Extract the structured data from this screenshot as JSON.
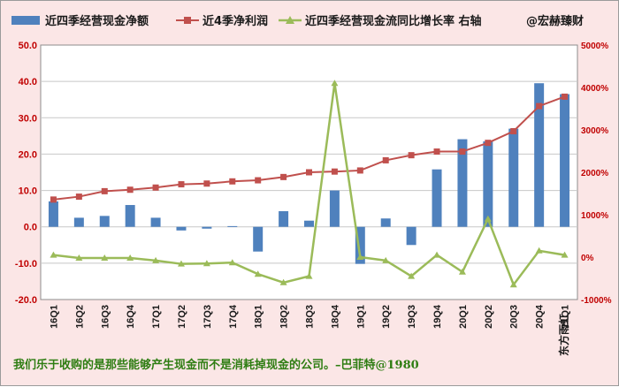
{
  "colors": {
    "background": "#fbe6e6",
    "plot_background": "#ffffff",
    "bars": "#4f81bd",
    "net_profit_line": "#c0504d",
    "growth_line": "#9bbb59",
    "tick_labels": "#c00000",
    "quote_text": "#2e7d12"
  },
  "legend": {
    "bar_label": "近四季经营现金净额",
    "profit_label": "近4季净利润",
    "growth_label": "近四季经营现金流同比增长率 右轴",
    "source_tag": "@宏赫臻财"
  },
  "watermark": "东方雨虹",
  "quote": "我们乐于收购的是那些能够产生现金而不是消耗掉现金的公司。–巴菲特@1980",
  "chart_data": {
    "type": "bar",
    "categories": [
      "16Q1",
      "16Q2",
      "16Q3",
      "16Q4",
      "17Q1",
      "17Q2",
      "17Q3",
      "17Q4",
      "18Q1",
      "18Q2",
      "18Q3",
      "18Q4",
      "19Q1",
      "19Q2",
      "19Q3",
      "19Q4",
      "20Q1",
      "20Q2",
      "20Q3",
      "20Q4",
      "21Q1"
    ],
    "series": [
      {
        "name": "近四季经营现金净额",
        "type": "bar",
        "axis": "left",
        "values": [
          7.0,
          2.5,
          3.0,
          6.0,
          2.5,
          -1.0,
          -0.5,
          0.2,
          -6.8,
          4.3,
          1.7,
          10.0,
          -10.2,
          2.3,
          -5.0,
          15.8,
          24.1,
          23.5,
          27.0,
          39.5,
          36.5
        ]
      },
      {
        "name": "近4季净利润",
        "type": "line",
        "axis": "left",
        "values": [
          7.5,
          8.3,
          9.8,
          10.2,
          10.8,
          11.7,
          11.9,
          12.5,
          12.8,
          13.7,
          15.0,
          15.2,
          15.5,
          18.3,
          19.7,
          20.7,
          20.7,
          23.1,
          26.3,
          33.2,
          35.8
        ]
      },
      {
        "name": "近四季经营现金流同比增长率",
        "type": "line",
        "axis": "right",
        "values": [
          50,
          -20,
          -20,
          -20,
          -80,
          -160,
          -150,
          -130,
          -400,
          -600,
          -450,
          4100,
          0,
          -80,
          -450,
          50,
          -350,
          900,
          -650,
          150,
          50
        ]
      }
    ],
    "y_left": {
      "lim": [
        -20,
        50
      ],
      "ticks": [
        "50.0",
        "40.0",
        "30.0",
        "20.0",
        "10.0",
        "0.0",
        "-10.0",
        "-20.0"
      ]
    },
    "y_right": {
      "lim": [
        -1000,
        5000
      ],
      "ticks": [
        "5000%",
        "4000%",
        "3000%",
        "2000%",
        "1000%",
        "0%",
        "-1000%"
      ]
    },
    "grid": true,
    "legend_position": "top"
  }
}
